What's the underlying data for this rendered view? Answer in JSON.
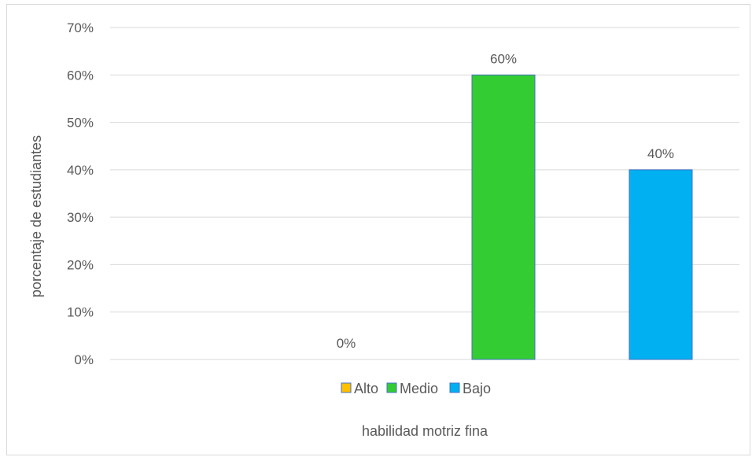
{
  "chart_data": {
    "type": "bar",
    "categories": [
      "Alto",
      "Medio",
      "Bajo"
    ],
    "values": [
      0,
      60,
      40
    ],
    "data_labels": [
      "0%",
      "60%",
      "40%"
    ],
    "colors": [
      "#FFC000",
      "#33CC33",
      "#00B0F0"
    ],
    "bar_border": "#4472C4",
    "xlabel": "habilidad motriz fina",
    "ylabel": "porcentaje de estudiantes",
    "ylim": [
      0,
      70
    ],
    "yticks": [
      "0%",
      "10%",
      "20%",
      "30%",
      "40%",
      "50%",
      "60%",
      "70%"
    ],
    "grid": true,
    "legend": {
      "position": "bottom",
      "entries": [
        "Alto",
        "Medio",
        "Bajo"
      ]
    }
  }
}
